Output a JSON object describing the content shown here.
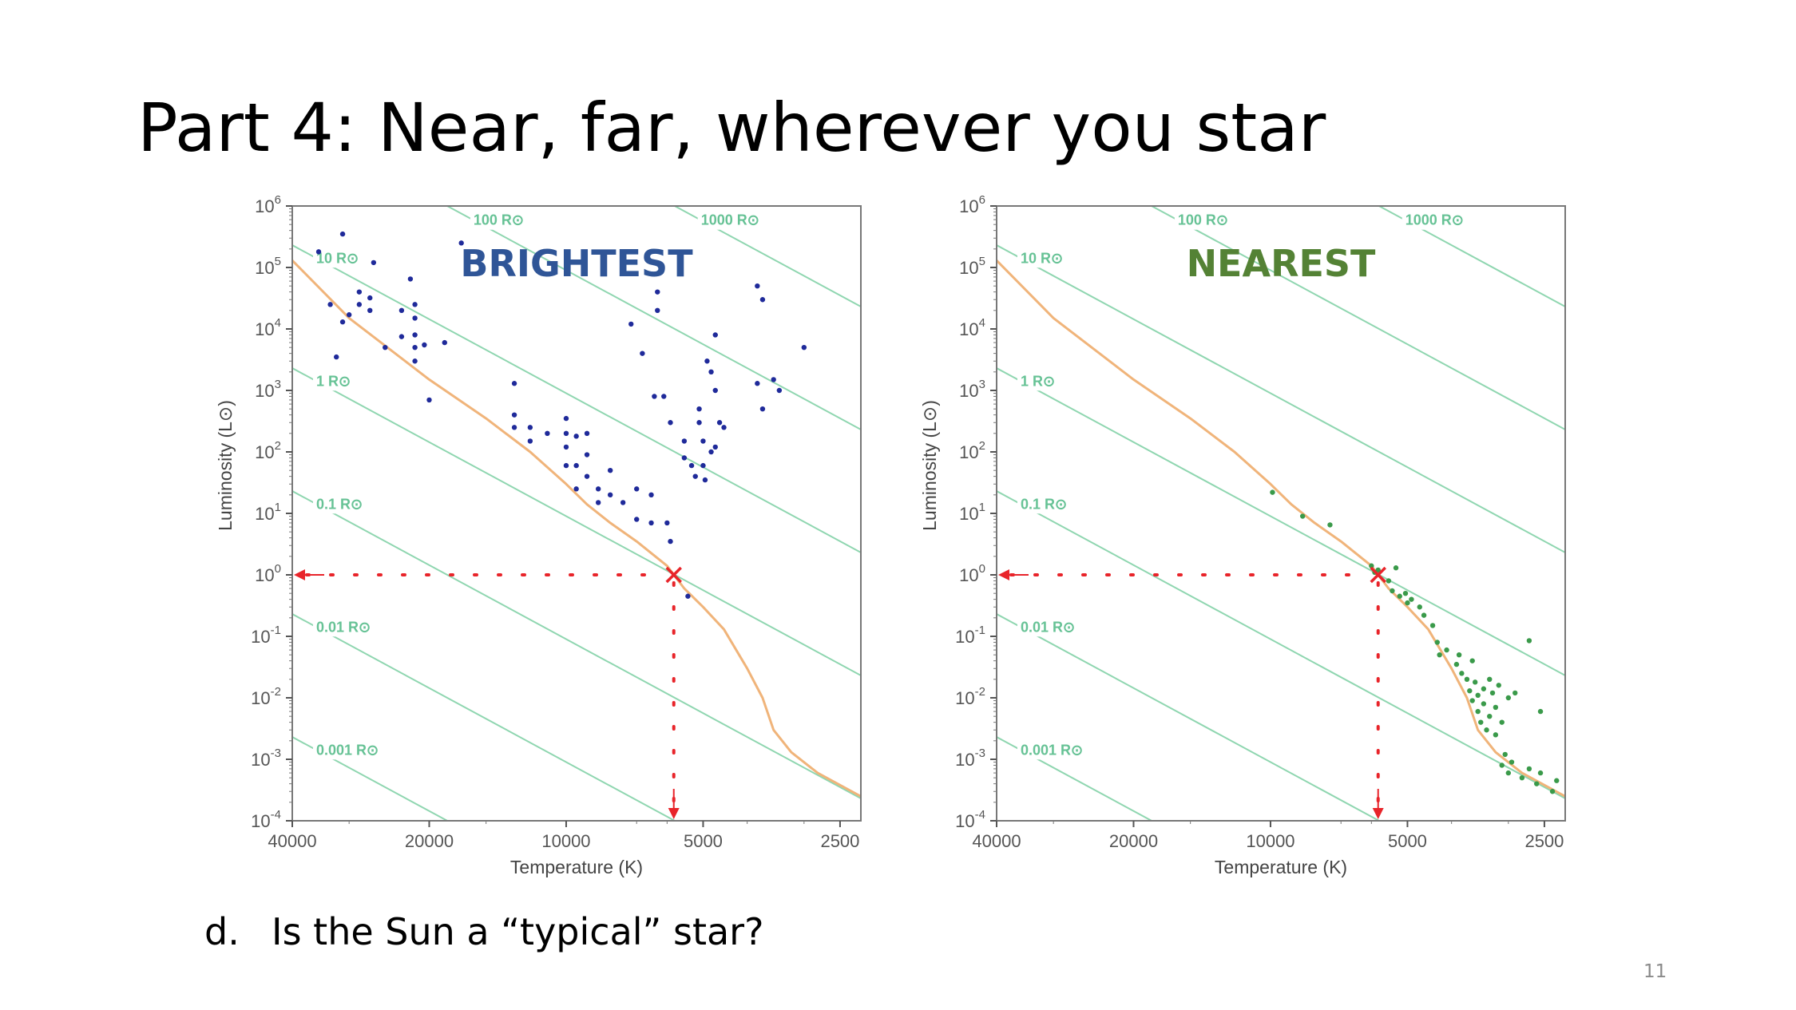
{
  "slide": {
    "title": "Part 4: Near, far, wherever you star",
    "question_label": "d.",
    "question_text": "Is the Sun a “typical” star?",
    "page_number": "11"
  },
  "colors": {
    "radius_line": "#8fd6b0",
    "radius_label": "#66c295",
    "main_sequence": "#f0b47a",
    "sun_marker": "#e8242a",
    "brightest_title": "#2f5597",
    "brightest_points": "#1f2a9a",
    "nearest_title": "#548235",
    "nearest_points": "#3a9a4a"
  },
  "chart_data": [
    {
      "type": "scatter",
      "title": "BRIGHTEST",
      "xlabel": "Temperature (K)",
      "ylabel": "Luminosity (L⊙)",
      "x_scale": "log-reversed",
      "xlim": [
        40000,
        2250
      ],
      "y_scale": "log",
      "ylim_exp": [
        -4,
        6
      ],
      "x_ticks": [
        {
          "v": 40000,
          "label": "40000"
        },
        {
          "v": 20000,
          "label": "20000"
        },
        {
          "v": 10000,
          "label": "10000"
        },
        {
          "v": 5000,
          "label": "5000"
        },
        {
          "v": 2500,
          "label": "2500"
        }
      ],
      "y_ticks": [
        {
          "exp": 6,
          "base": "10",
          "sup": "6"
        },
        {
          "exp": 5,
          "base": "10",
          "sup": "5"
        },
        {
          "exp": 4,
          "base": "10",
          "sup": "4"
        },
        {
          "exp": 3,
          "base": "10",
          "sup": "3"
        },
        {
          "exp": 2,
          "base": "10",
          "sup": "2"
        },
        {
          "exp": 1,
          "base": "10",
          "sup": "1"
        },
        {
          "exp": 0,
          "base": "10",
          "sup": "0"
        },
        {
          "exp": -1,
          "base": "10",
          "sup": "-1"
        },
        {
          "exp": -2,
          "base": "10",
          "sup": "-2"
        },
        {
          "exp": -3,
          "base": "10",
          "sup": "-3"
        },
        {
          "exp": -4,
          "base": "10",
          "sup": "-4"
        }
      ],
      "radius_lines": [
        {
          "r": 0.001,
          "label": "0.001 R⊙"
        },
        {
          "r": 0.01,
          "label": "0.01 R⊙"
        },
        {
          "r": 0.1,
          "label": "0.1 R⊙"
        },
        {
          "r": 1,
          "label": "1 R⊙"
        },
        {
          "r": 10,
          "label": "10 R⊙"
        },
        {
          "r": 100,
          "label": "100 R⊙"
        },
        {
          "r": 1000,
          "label": "1000 R⊙"
        }
      ],
      "main_sequence": [
        {
          "t": 40000,
          "l": 130000.0
        },
        {
          "t": 30000,
          "l": 15000.0
        },
        {
          "t": 20000,
          "l": 1500.0
        },
        {
          "t": 15000,
          "l": 350.0
        },
        {
          "t": 12000,
          "l": 100.0
        },
        {
          "t": 10000,
          "l": 30.0
        },
        {
          "t": 9000,
          "l": 14.0
        },
        {
          "t": 8000,
          "l": 7
        },
        {
          "t": 7000,
          "l": 3.5
        },
        {
          "t": 6000,
          "l": 1.4
        },
        {
          "t": 5500,
          "l": 0.6
        },
        {
          "t": 5000,
          "l": 0.3
        },
        {
          "t": 4500,
          "l": 0.13
        },
        {
          "t": 4000,
          "l": 0.03
        },
        {
          "t": 3700,
          "l": 0.01
        },
        {
          "t": 3500,
          "l": 0.003
        },
        {
          "t": 3200,
          "l": 0.0013
        },
        {
          "t": 2800,
          "l": 0.0006
        },
        {
          "t": 2250,
          "l": 0.00025
        }
      ],
      "sun": {
        "t": 5800,
        "l": 1
      },
      "points": [
        {
          "t": 31000,
          "l": 350000.0
        },
        {
          "t": 26500,
          "l": 120000.0
        },
        {
          "t": 22000,
          "l": 65000.0
        },
        {
          "t": 21500,
          "l": 25000.0
        },
        {
          "t": 21500,
          "l": 15000.0
        },
        {
          "t": 21500,
          "l": 8000.0
        },
        {
          "t": 21500,
          "l": 5000.0
        },
        {
          "t": 21500,
          "l": 3000.0
        },
        {
          "t": 23000,
          "l": 20000.0
        },
        {
          "t": 23000,
          "l": 7500.0
        },
        {
          "t": 27000,
          "l": 32000.0
        },
        {
          "t": 27000,
          "l": 20000.0
        },
        {
          "t": 28500,
          "l": 40000.0
        },
        {
          "t": 28500,
          "l": 25000.0
        },
        {
          "t": 30000,
          "l": 17000.0
        },
        {
          "t": 31000,
          "l": 13000.0
        },
        {
          "t": 33000,
          "l": 25000.0
        },
        {
          "t": 35000,
          "l": 180000.0
        },
        {
          "t": 32000,
          "l": 3500.0
        },
        {
          "t": 25000,
          "l": 5000.0
        },
        {
          "t": 20500,
          "l": 5500.0
        },
        {
          "t": 20000,
          "l": 700.0
        },
        {
          "t": 18500,
          "l": 6000.0
        },
        {
          "t": 17000,
          "l": 250000.0
        },
        {
          "t": 13000,
          "l": 1300.0
        },
        {
          "t": 13000,
          "l": 400.0
        },
        {
          "t": 13000,
          "l": 250.0
        },
        {
          "t": 12000,
          "l": 250.0
        },
        {
          "t": 12000,
          "l": 150.0
        },
        {
          "t": 11000,
          "l": 200.0
        },
        {
          "t": 10000,
          "l": 350.0
        },
        {
          "t": 10000,
          "l": 200.0
        },
        {
          "t": 10000,
          "l": 120.0
        },
        {
          "t": 10000,
          "l": 60.0
        },
        {
          "t": 9500,
          "l": 180.0
        },
        {
          "t": 9500,
          "l": 60.0
        },
        {
          "t": 9000,
          "l": 200.0
        },
        {
          "t": 9000,
          "l": 90.0
        },
        {
          "t": 9000,
          "l": 40.0
        },
        {
          "t": 9500,
          "l": 25.0
        },
        {
          "t": 8500,
          "l": 25.0
        },
        {
          "t": 8500,
          "l": 15.0
        },
        {
          "t": 8000,
          "l": 50.0
        },
        {
          "t": 8000,
          "l": 20.0
        },
        {
          "t": 7500,
          "l": 15.0
        },
        {
          "t": 7000,
          "l": 25.0
        },
        {
          "t": 7000,
          "l": 8
        },
        {
          "t": 6500,
          "l": 20.0
        },
        {
          "t": 6500,
          "l": 7
        },
        {
          "t": 6000,
          "l": 7
        },
        {
          "t": 5900,
          "l": 3.5
        },
        {
          "t": 6400,
          "l": 800.0
        },
        {
          "t": 6800,
          "l": 4000.0
        },
        {
          "t": 7200,
          "l": 12000.0
        },
        {
          "t": 6300,
          "l": 40000.0
        },
        {
          "t": 6300,
          "l": 20000.0
        },
        {
          "t": 6100,
          "l": 800.0
        },
        {
          "t": 5900,
          "l": 300.0
        },
        {
          "t": 5500,
          "l": 150.0
        },
        {
          "t": 5500,
          "l": 80.0
        },
        {
          "t": 5300,
          "l": 60.0
        },
        {
          "t": 5200,
          "l": 40.0
        },
        {
          "t": 5100,
          "l": 500.0
        },
        {
          "t": 5100,
          "l": 300.0
        },
        {
          "t": 5000,
          "l": 150.0
        },
        {
          "t": 5000,
          "l": 60.0
        },
        {
          "t": 4950,
          "l": 35.0
        },
        {
          "t": 4900,
          "l": 3000.0
        },
        {
          "t": 4800,
          "l": 2000.0
        },
        {
          "t": 4700,
          "l": 8000.0
        },
        {
          "t": 4700,
          "l": 1000.0
        },
        {
          "t": 4600,
          "l": 300.0
        },
        {
          "t": 4500,
          "l": 250.0
        },
        {
          "t": 4700,
          "l": 120.0
        },
        {
          "t": 4800,
          "l": 100.0
        },
        {
          "t": 3800,
          "l": 50000.0
        },
        {
          "t": 3700,
          "l": 30000.0
        },
        {
          "t": 3800,
          "l": 1300.0
        },
        {
          "t": 3700,
          "l": 500.0
        },
        {
          "t": 3500,
          "l": 1500.0
        },
        {
          "t": 3400,
          "l": 1000.0
        },
        {
          "t": 3000,
          "l": 5000.0
        },
        {
          "t": 5400,
          "l": 0.45
        }
      ]
    },
    {
      "type": "scatter",
      "title": "NEAREST",
      "xlabel": "Temperature (K)",
      "ylabel": "Luminosity (L⊙)",
      "x_scale": "log-reversed",
      "xlim": [
        40000,
        2250
      ],
      "y_scale": "log",
      "ylim_exp": [
        -4,
        6
      ],
      "x_ticks": [
        {
          "v": 40000,
          "label": "40000"
        },
        {
          "v": 20000,
          "label": "20000"
        },
        {
          "v": 10000,
          "label": "10000"
        },
        {
          "v": 5000,
          "label": "5000"
        },
        {
          "v": 2500,
          "label": "2500"
        }
      ],
      "y_ticks": [
        {
          "exp": 6,
          "base": "10",
          "sup": "6"
        },
        {
          "exp": 5,
          "base": "10",
          "sup": "5"
        },
        {
          "exp": 4,
          "base": "10",
          "sup": "4"
        },
        {
          "exp": 3,
          "base": "10",
          "sup": "3"
        },
        {
          "exp": 2,
          "base": "10",
          "sup": "2"
        },
        {
          "exp": 1,
          "base": "10",
          "sup": "1"
        },
        {
          "exp": 0,
          "base": "10",
          "sup": "0"
        },
        {
          "exp": -1,
          "base": "10",
          "sup": "-1"
        },
        {
          "exp": -2,
          "base": "10",
          "sup": "-2"
        },
        {
          "exp": -3,
          "base": "10",
          "sup": "-3"
        },
        {
          "exp": -4,
          "base": "10",
          "sup": "-4"
        }
      ],
      "radius_lines": [
        {
          "r": 0.001,
          "label": "0.001 R⊙"
        },
        {
          "r": 0.01,
          "label": "0.01 R⊙"
        },
        {
          "r": 0.1,
          "label": "0.1 R⊙"
        },
        {
          "r": 1,
          "label": "1 R⊙"
        },
        {
          "r": 10,
          "label": "10 R⊙"
        },
        {
          "r": 100,
          "label": "100 R⊙"
        },
        {
          "r": 1000,
          "label": "1000 R⊙"
        }
      ],
      "main_sequence": [
        {
          "t": 40000,
          "l": 130000.0
        },
        {
          "t": 30000,
          "l": 15000.0
        },
        {
          "t": 20000,
          "l": 1500.0
        },
        {
          "t": 15000,
          "l": 350.0
        },
        {
          "t": 12000,
          "l": 100.0
        },
        {
          "t": 10000,
          "l": 30.0
        },
        {
          "t": 9000,
          "l": 14.0
        },
        {
          "t": 8000,
          "l": 7
        },
        {
          "t": 7000,
          "l": 3.5
        },
        {
          "t": 6000,
          "l": 1.4
        },
        {
          "t": 5500,
          "l": 0.6
        },
        {
          "t": 5000,
          "l": 0.3
        },
        {
          "t": 4500,
          "l": 0.13
        },
        {
          "t": 4000,
          "l": 0.03
        },
        {
          "t": 3700,
          "l": 0.01
        },
        {
          "t": 3500,
          "l": 0.003
        },
        {
          "t": 3200,
          "l": 0.0013
        },
        {
          "t": 2800,
          "l": 0.0006
        },
        {
          "t": 2250,
          "l": 0.00025
        }
      ],
      "sun": {
        "t": 5800,
        "l": 1
      },
      "points": [
        {
          "t": 9900,
          "l": 22.0
        },
        {
          "t": 8500,
          "l": 9
        },
        {
          "t": 7400,
          "l": 6.5
        },
        {
          "t": 6000,
          "l": 1.4
        },
        {
          "t": 5900,
          "l": 1.1
        },
        {
          "t": 5800,
          "l": 1.2
        },
        {
          "t": 5500,
          "l": 0.8
        },
        {
          "t": 5300,
          "l": 1.3
        },
        {
          "t": 5400,
          "l": 0.55
        },
        {
          "t": 5200,
          "l": 0.45
        },
        {
          "t": 5050,
          "l": 0.5
        },
        {
          "t": 5000,
          "l": 0.35
        },
        {
          "t": 4900,
          "l": 0.4
        },
        {
          "t": 4700,
          "l": 0.3
        },
        {
          "t": 4600,
          "l": 0.22
        },
        {
          "t": 4400,
          "l": 0.15
        },
        {
          "t": 4300,
          "l": 0.08
        },
        {
          "t": 4250,
          "l": 0.05
        },
        {
          "t": 4100,
          "l": 0.06
        },
        {
          "t": 3900,
          "l": 0.035
        },
        {
          "t": 3850,
          "l": 0.05
        },
        {
          "t": 3800,
          "l": 0.025
        },
        {
          "t": 3700,
          "l": 0.02
        },
        {
          "t": 3650,
          "l": 0.013
        },
        {
          "t": 3600,
          "l": 0.04
        },
        {
          "t": 3600,
          "l": 0.009
        },
        {
          "t": 3550,
          "l": 0.018
        },
        {
          "t": 3500,
          "l": 0.011
        },
        {
          "t": 3500,
          "l": 0.006
        },
        {
          "t": 3450,
          "l": 0.004
        },
        {
          "t": 3400,
          "l": 0.014
        },
        {
          "t": 3400,
          "l": 0.008
        },
        {
          "t": 3350,
          "l": 0.003
        },
        {
          "t": 3300,
          "l": 0.02
        },
        {
          "t": 3300,
          "l": 0.005
        },
        {
          "t": 3250,
          "l": 0.012
        },
        {
          "t": 3200,
          "l": 0.007
        },
        {
          "t": 3200,
          "l": 0.0025
        },
        {
          "t": 3150,
          "l": 0.016
        },
        {
          "t": 3100,
          "l": 0.004
        },
        {
          "t": 3100,
          "l": 0.0008
        },
        {
          "t": 3050,
          "l": 0.0012
        },
        {
          "t": 3000,
          "l": 0.01
        },
        {
          "t": 3000,
          "l": 0.0006
        },
        {
          "t": 2950,
          "l": 0.0009
        },
        {
          "t": 2800,
          "l": 0.0005
        },
        {
          "t": 2700,
          "l": 0.0007
        },
        {
          "t": 2600,
          "l": 0.0004
        },
        {
          "t": 2550,
          "l": 0.0006
        },
        {
          "t": 2400,
          "l": 0.0003
        },
        {
          "t": 2350,
          "l": 0.00045
        },
        {
          "t": 2700,
          "l": 0.085
        },
        {
          "t": 2550,
          "l": 0.006
        },
        {
          "t": 2900,
          "l": 0.012
        }
      ]
    }
  ]
}
